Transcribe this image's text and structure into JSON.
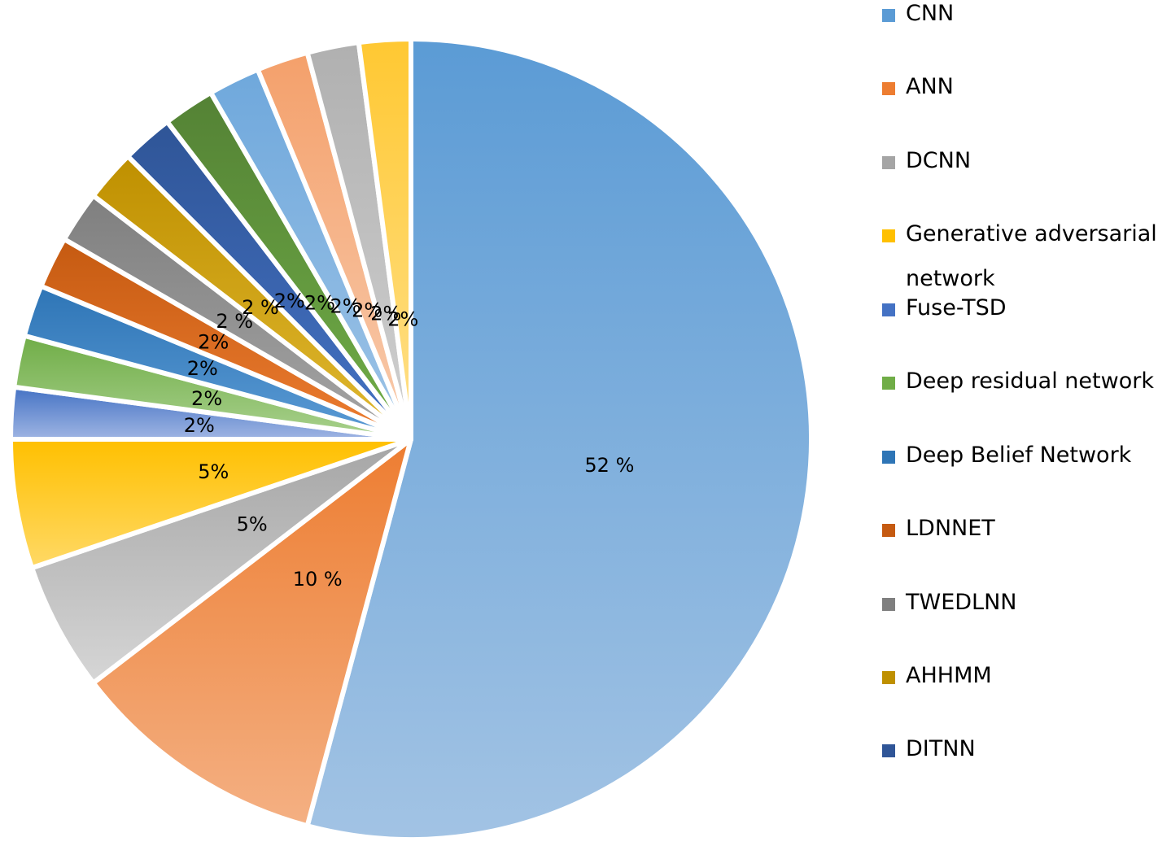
{
  "chart_data": {
    "type": "pie",
    "title": "",
    "slices": [
      {
        "name": "CNN",
        "value": 52,
        "label": "52 %",
        "color": "#5b9bd5",
        "color_light": "#a2c3e4"
      },
      {
        "name": "ANN",
        "value": 10,
        "label": "10 %",
        "color": "#ed7d31",
        "color_light": "#f4b083"
      },
      {
        "name": "DCNN",
        "value": 5,
        "label": "5%",
        "color": "#a5a5a5",
        "color_light": "#d6d6d6"
      },
      {
        "name": "Generative adversarial network",
        "value": 5,
        "label": "5%",
        "color": "#ffc000",
        "color_light": "#ffd966"
      },
      {
        "name": "Fuse-TSD",
        "value": 2,
        "label": "2%",
        "color": "#4472c4",
        "color_light": "#9fb5e3"
      },
      {
        "name": "Deep residual network",
        "value": 2,
        "label": "2%",
        "color": "#70ad47",
        "color_light": "#a9d18e"
      },
      {
        "name": "Deep Belief Network",
        "value": 2,
        "label": "2%",
        "color": "#2e75b6",
        "color_light": "#5b9bd5"
      },
      {
        "name": "LDNNET",
        "value": 2,
        "label": "2%",
        "color": "#c55a11",
        "color_light": "#ed7d31"
      },
      {
        "name": "TWEDLNN",
        "value": 2,
        "label": "2 %",
        "color": "#7f7f7f",
        "color_light": "#a5a5a5"
      },
      {
        "name": "AHHMM",
        "value": 2,
        "label": "2 %",
        "color": "#bf9000",
        "color_light": "#e0b830"
      },
      {
        "name": "DITNN",
        "value": 2,
        "label": "2%",
        "color": "#2f5597",
        "color_light": "#4472c4"
      },
      {
        "name": "",
        "value": 2,
        "label": "2%",
        "color": "#548235",
        "color_light": "#70ad47"
      },
      {
        "name": "",
        "value": 2,
        "label": "2%",
        "color": "#6fa8dc",
        "color_light": "#9dc3e6"
      },
      {
        "name": "",
        "value": 2,
        "label": "2%",
        "color": "#f4a06b",
        "color_light": "#f8cbad"
      },
      {
        "name": "",
        "value": 2,
        "label": "2%",
        "color": "#b0b0b0",
        "color_light": "#d0d0d0"
      },
      {
        "name": "",
        "value": 2,
        "label": "2%",
        "color": "#ffc832",
        "color_light": "#ffe08a"
      }
    ],
    "legend": {
      "position": "right",
      "items": [
        {
          "label": "CNN",
          "color": "#5b9bd5"
        },
        {
          "label": "ANN",
          "color": "#ed7d31"
        },
        {
          "label": "DCNN",
          "color": "#a5a5a5"
        },
        {
          "label": "Generative adversarial network",
          "color": "#ffc000"
        },
        {
          "label": "Fuse-TSD",
          "color": "#4472c4"
        },
        {
          "label": "Deep residual network",
          "color": "#70ad47"
        },
        {
          "label": "Deep Belief Network",
          "color": "#2e75b6"
        },
        {
          "label": "LDNNET",
          "color": "#c55a11"
        },
        {
          "label": "TWEDLNN",
          "color": "#7f7f7f"
        },
        {
          "label": "AHHMM",
          "color": "#bf9000"
        },
        {
          "label": "DITNN",
          "color": "#2f5597"
        }
      ]
    }
  }
}
